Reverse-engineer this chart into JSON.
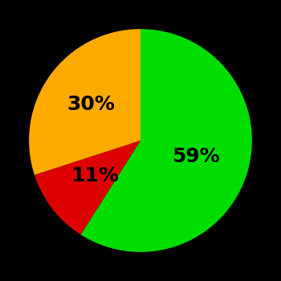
{
  "slices": [
    59,
    11,
    30
  ],
  "colors": [
    "#00dd00",
    "#dd0000",
    "#ffaa00"
  ],
  "labels": [
    "59%",
    "11%",
    "30%"
  ],
  "label_colors": [
    "black",
    "black",
    "black"
  ],
  "background_color": "#000000",
  "label_fontsize": 18,
  "label_fontweight": "bold",
  "startangle": 90,
  "figsize": [
    3.5,
    3.5
  ],
  "dpi": 100,
  "label_radii": [
    0.52,
    0.52,
    0.55
  ]
}
